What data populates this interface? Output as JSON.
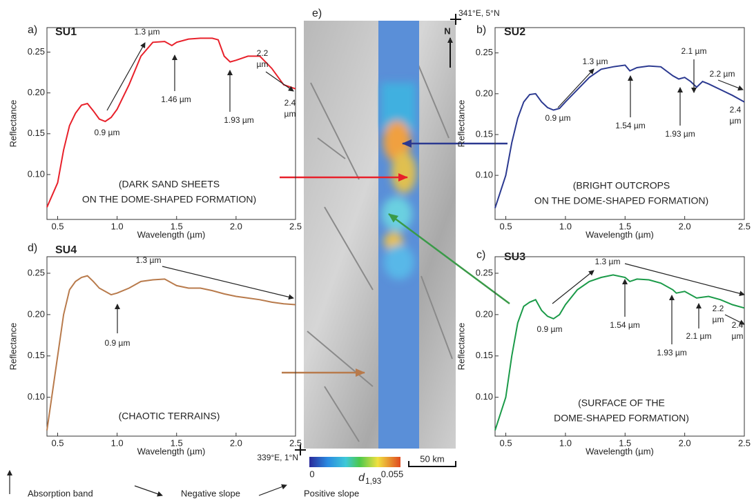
{
  "chart_data": [
    {
      "type": "line",
      "panel": "a)",
      "title": "SU1",
      "color": "#e8202a",
      "caption": [
        "(DARK SAND SHEETS",
        "ON THE DOME-SHAPED FORMATION)"
      ],
      "xlabel": "Wavelength (µm)",
      "ylabel": "Reflectance",
      "x": [
        0.41,
        0.5,
        0.55,
        0.6,
        0.65,
        0.7,
        0.75,
        0.8,
        0.85,
        0.9,
        0.95,
        1.0,
        1.1,
        1.2,
        1.3,
        1.4,
        1.46,
        1.5,
        1.6,
        1.7,
        1.8,
        1.85,
        1.9,
        1.95,
        2.0,
        2.1,
        2.2,
        2.3,
        2.4,
        2.5
      ],
      "values": [
        0.06,
        0.09,
        0.13,
        0.16,
        0.175,
        0.185,
        0.187,
        0.178,
        0.168,
        0.165,
        0.17,
        0.18,
        0.21,
        0.245,
        0.262,
        0.263,
        0.258,
        0.262,
        0.266,
        0.267,
        0.267,
        0.265,
        0.245,
        0.238,
        0.24,
        0.245,
        0.245,
        0.23,
        0.21,
        0.205
      ],
      "xlim": [
        0.41,
        2.5
      ],
      "ylim": [
        0.045,
        0.28
      ],
      "xticks": [
        0.5,
        {
          "value": 1,
          "label": "1.0"
        },
        1.5,
        {
          "value": 2,
          "label": "2.0"
        },
        2.5
      ],
      "yticks": [
        {
          "value": 0.1,
          "label": "0.10"
        },
        0.15,
        {
          "value": 0.2,
          "label": "0.20"
        },
        0.25
      ],
      "annotations": [
        [
          "1.3 µm"
        ],
        [
          "1.46 µm"
        ],
        [
          "0.9 µm"
        ],
        [
          "1.93 µm"
        ],
        [
          "2.2",
          "µm"
        ],
        [
          "2.4",
          "µm"
        ]
      ]
    },
    {
      "type": "line",
      "panel": "b)",
      "title": "SU2",
      "color": "#2b3990",
      "caption": [
        "(BRIGHT OUTCROPS",
        "ON THE DOME-SHAPED FORMATION)"
      ],
      "xlabel": "Wavelength (µm)",
      "ylabel": "Reflectance",
      "x": [
        0.41,
        0.5,
        0.55,
        0.6,
        0.65,
        0.7,
        0.75,
        0.8,
        0.85,
        0.9,
        0.95,
        1.0,
        1.1,
        1.2,
        1.3,
        1.4,
        1.5,
        1.54,
        1.6,
        1.7,
        1.8,
        1.9,
        1.95,
        2.0,
        2.05,
        2.1,
        2.15,
        2.2,
        2.3,
        2.4,
        2.5
      ],
      "values": [
        0.06,
        0.1,
        0.14,
        0.17,
        0.19,
        0.199,
        0.2,
        0.19,
        0.183,
        0.18,
        0.182,
        0.19,
        0.205,
        0.22,
        0.23,
        0.233,
        0.235,
        0.228,
        0.232,
        0.234,
        0.233,
        0.222,
        0.218,
        0.22,
        0.215,
        0.208,
        0.215,
        0.212,
        0.205,
        0.198,
        0.19
      ],
      "xlim": [
        0.41,
        2.5
      ],
      "ylim": [
        0.046,
        0.281
      ],
      "xticks": [
        0.5,
        {
          "value": 1,
          "label": "1.0"
        },
        1.5,
        {
          "value": 2,
          "label": "2.0"
        },
        2.5
      ],
      "yticks": [
        {
          "value": 0.1,
          "label": "0.10"
        },
        0.15,
        {
          "value": 0.2,
          "label": "0.20"
        },
        0.25
      ],
      "annotations": [
        [
          "1.3 µm"
        ],
        [
          "2.1 µm"
        ],
        [
          "2.2 µm"
        ],
        [
          "0.9 µm"
        ],
        [
          "1.54 µm"
        ],
        [
          "1.93 µm"
        ],
        [
          "2.4",
          "µm"
        ]
      ]
    },
    {
      "type": "line",
      "panel": "c)",
      "title": "SU3",
      "color": "#1a9a48",
      "caption": [
        "(SURFACE OF THE",
        "DOME-SHAPED FORMATION)"
      ],
      "xlabel": "Wavelength (µm)",
      "ylabel": "Reflectance",
      "x": [
        0.41,
        0.5,
        0.55,
        0.6,
        0.65,
        0.7,
        0.75,
        0.8,
        0.85,
        0.9,
        0.95,
        1.0,
        1.1,
        1.2,
        1.3,
        1.4,
        1.5,
        1.54,
        1.6,
        1.7,
        1.8,
        1.9,
        1.93,
        2.0,
        2.1,
        2.2,
        2.3,
        2.4,
        2.5
      ],
      "values": [
        0.06,
        0.1,
        0.15,
        0.19,
        0.21,
        0.215,
        0.218,
        0.205,
        0.198,
        0.195,
        0.2,
        0.212,
        0.23,
        0.24,
        0.245,
        0.248,
        0.245,
        0.24,
        0.243,
        0.242,
        0.238,
        0.23,
        0.226,
        0.228,
        0.22,
        0.222,
        0.218,
        0.212,
        0.208
      ],
      "xlim": [
        0.41,
        2.5
      ],
      "ylim": [
        0.053,
        0.27
      ],
      "xticks": [
        0.5,
        {
          "value": 1,
          "label": "1.0"
        },
        1.5,
        {
          "value": 2,
          "label": "2.0"
        },
        2.5
      ],
      "yticks": [
        {
          "value": 0.1,
          "label": "0.10"
        },
        0.15,
        {
          "value": 0.2,
          "label": "0.20"
        },
        0.25
      ],
      "annotations": [
        [
          "1.3 µm"
        ],
        [
          "1.54 µm"
        ],
        [
          "0.9 µm"
        ],
        [
          "1.93 µm"
        ],
        [
          "2.1 µm"
        ],
        [
          "2.2",
          "µm"
        ],
        [
          "2.4",
          "µm"
        ]
      ]
    },
    {
      "type": "line",
      "panel": "d)",
      "title": "SU4",
      "color": "#b87a4b",
      "caption": [
        "(CHAOTIC TERRAINS)"
      ],
      "xlabel": "Wavelength (µm)",
      "ylabel": "Reflectance",
      "x": [
        0.41,
        0.45,
        0.5,
        0.55,
        0.6,
        0.65,
        0.7,
        0.75,
        0.8,
        0.85,
        0.9,
        0.95,
        1.0,
        1.1,
        1.2,
        1.3,
        1.4,
        1.5,
        1.6,
        1.7,
        1.8,
        1.9,
        2.0,
        2.1,
        2.2,
        2.3,
        2.4,
        2.5
      ],
      "values": [
        0.06,
        0.1,
        0.15,
        0.2,
        0.23,
        0.24,
        0.245,
        0.247,
        0.24,
        0.232,
        0.228,
        0.224,
        0.226,
        0.232,
        0.24,
        0.242,
        0.243,
        0.235,
        0.232,
        0.232,
        0.229,
        0.225,
        0.222,
        0.22,
        0.218,
        0.215,
        0.213,
        0.212
      ],
      "xlim": [
        0.41,
        2.5
      ],
      "ylim": [
        0.053,
        0.27
      ],
      "xticks": [
        0.5,
        {
          "value": 1,
          "label": "1.0"
        },
        1.5,
        {
          "value": 2,
          "label": "2.0"
        },
        2.5
      ],
      "yticks": [
        {
          "value": 0.1,
          "label": "0.10"
        },
        0.15,
        {
          "value": 0.2,
          "label": "0.20"
        },
        0.25
      ],
      "annotations": [
        [
          "1.3 µm"
        ],
        [
          "0.9 µm"
        ]
      ]
    }
  ],
  "map": {
    "panel": "e)",
    "corner_top": "341°E, 5°N",
    "corner_bottom": "339°E, 1°N",
    "north": "N",
    "colorbar": {
      "symbol": "d",
      "subscript": "1,93",
      "ticks": [
        0,
        0.055
      ],
      "lim": [
        0,
        0.055
      ]
    },
    "scale": "50 km"
  },
  "legend": [
    "Absorption band",
    "Negative slope",
    "Positive slope"
  ]
}
